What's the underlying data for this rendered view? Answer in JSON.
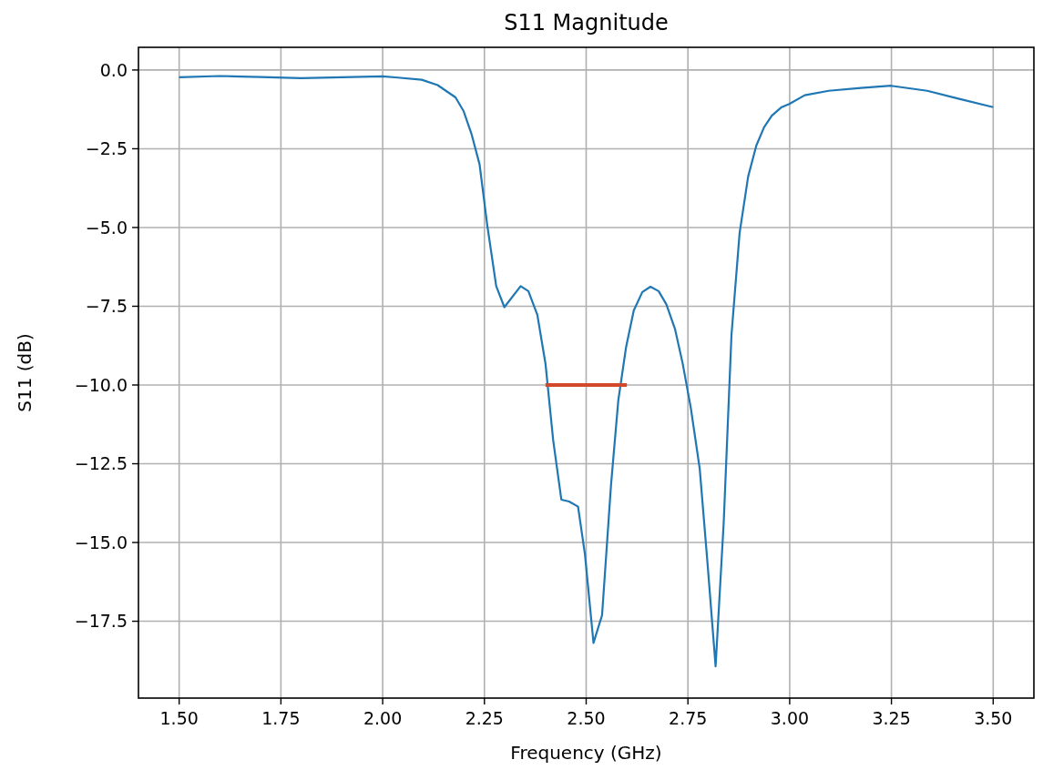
{
  "chart_data": {
    "type": "line",
    "title": "S11 Magnitude",
    "xlabel": "Frequency (GHz)",
    "ylabel": "S11 (dB)",
    "xlim": [
      1.4,
      3.6
    ],
    "ylim": [
      -19.94,
      0.72
    ],
    "xticks": [
      {
        "value": 1.5,
        "label": "1.50"
      },
      {
        "value": 1.75,
        "label": "1.75"
      },
      {
        "value": 2.0,
        "label": "2.00"
      },
      {
        "value": 2.25,
        "label": "2.25"
      },
      {
        "value": 2.5,
        "label": "2.50"
      },
      {
        "value": 2.75,
        "label": "2.75"
      },
      {
        "value": 3.0,
        "label": "3.00"
      },
      {
        "value": 3.25,
        "label": "3.25"
      },
      {
        "value": 3.5,
        "label": "3.50"
      }
    ],
    "yticks": [
      {
        "value": 0,
        "label": "0.0"
      },
      {
        "value": -2.5,
        "label": "−2.5"
      },
      {
        "value": -5,
        "label": "−5.0"
      },
      {
        "value": -7.5,
        "label": "−7.5"
      },
      {
        "value": -10,
        "label": "−10.0"
      },
      {
        "value": -12.5,
        "label": "−12.5"
      },
      {
        "value": -15,
        "label": "−15.0"
      },
      {
        "value": -17.5,
        "label": "−17.5"
      }
    ],
    "grid": true,
    "series": [
      {
        "color": "#1f77b4",
        "x": [
          1.5,
          1.6,
          1.7,
          1.8,
          1.9,
          2.0,
          2.037,
          2.096,
          2.135,
          2.179,
          2.199,
          2.218,
          2.238,
          2.257,
          2.279,
          2.299,
          2.339,
          2.358,
          2.38,
          2.4,
          2.419,
          2.439,
          2.458,
          2.48,
          2.497,
          2.518,
          2.539,
          2.561,
          2.579,
          2.598,
          2.617,
          2.638,
          2.658,
          2.678,
          2.697,
          2.718,
          2.737,
          2.757,
          2.779,
          2.798,
          2.818,
          2.838,
          2.857,
          2.877,
          2.898,
          2.918,
          2.937,
          2.956,
          2.979,
          2.999,
          3.037,
          3.096,
          3.175,
          3.249,
          3.338,
          3.412,
          3.5
        ],
        "values": [
          -0.23,
          -0.19,
          -0.22,
          -0.26,
          -0.23,
          -0.2,
          -0.24,
          -0.31,
          -0.48,
          -0.87,
          -1.31,
          -2.02,
          -2.99,
          -4.93,
          -6.86,
          -7.53,
          -6.86,
          -7.02,
          -7.77,
          -9.32,
          -11.76,
          -13.64,
          -13.7,
          -13.86,
          -15.38,
          -18.19,
          -17.31,
          -13.18,
          -10.48,
          -8.8,
          -7.63,
          -7.05,
          -6.88,
          -7.02,
          -7.44,
          -8.21,
          -9.31,
          -10.72,
          -12.66,
          -15.64,
          -18.93,
          -14.34,
          -8.41,
          -5.17,
          -3.38,
          -2.4,
          -1.82,
          -1.45,
          -1.19,
          -1.08,
          -0.8,
          -0.66,
          -0.57,
          -0.5,
          -0.66,
          -0.9,
          -1.18
        ]
      },
      {
        "color": "#d2482a",
        "x": [
          2.4,
          2.6
        ],
        "values": [
          -10,
          -10
        ]
      }
    ]
  }
}
